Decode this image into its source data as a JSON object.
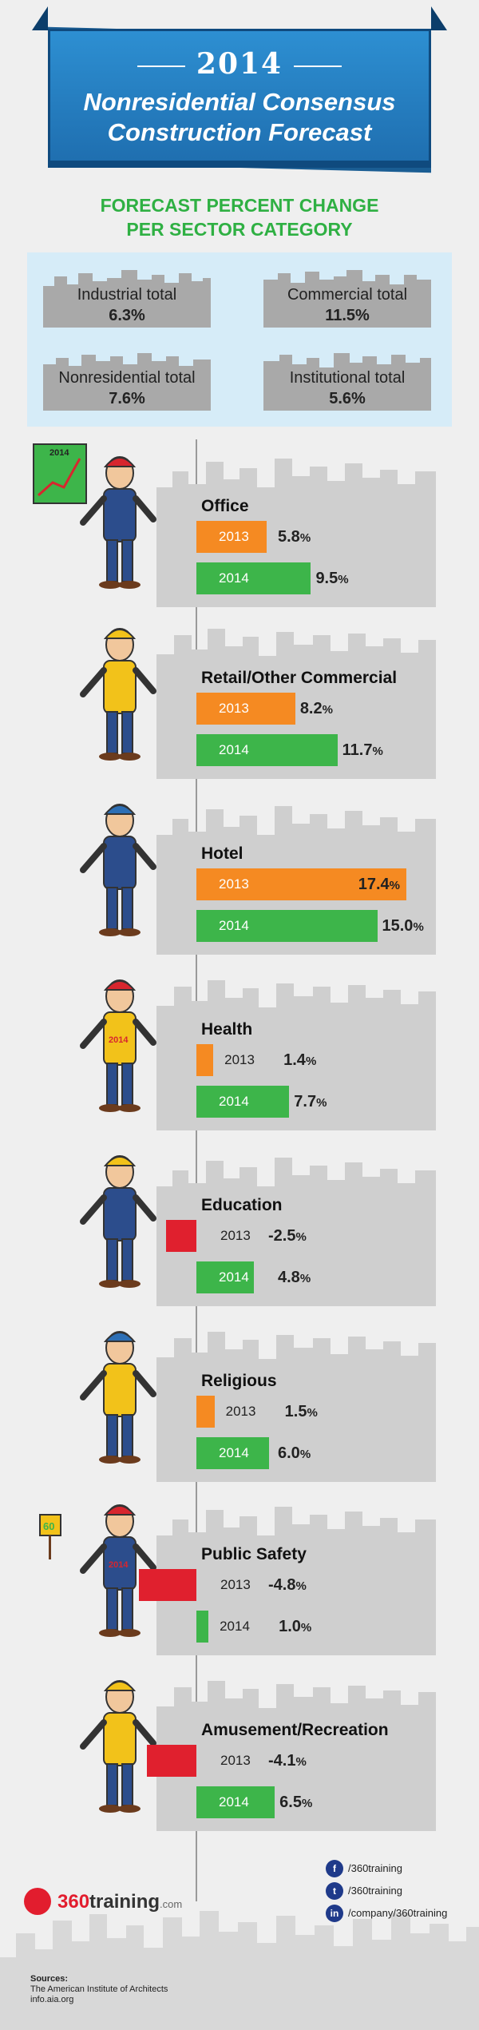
{
  "header": {
    "year": "2014",
    "title_line1": "Nonresidential Consensus",
    "title_line2": "Construction Forecast"
  },
  "section_title_line1": "FORECAST PERCENT CHANGE",
  "section_title_line2": "PER SECTOR CATEGORY",
  "summary": [
    {
      "label": "Industrial total",
      "value": "6.3%"
    },
    {
      "label": "Commercial total",
      "value": "11.5%"
    },
    {
      "label": "Nonresidential total",
      "value": "7.6%"
    },
    {
      "label": "Institutional total",
      "value": "5.6%"
    }
  ],
  "colors": {
    "y2013": "#f58a22",
    "y2014": "#3db54a",
    "negative": "#e0202e",
    "city": "#cfcfcf",
    "accent_blue": "#2d8fd2",
    "title_green": "#2fb043"
  },
  "chart_data": {
    "type": "bar",
    "orientation": "horizontal",
    "series": [
      {
        "name": "2013",
        "values": [
          5.8,
          8.2,
          17.4,
          1.4,
          -2.5,
          1.5,
          -4.8,
          -4.1
        ]
      },
      {
        "name": "2014",
        "values": [
          9.5,
          11.7,
          15.0,
          7.7,
          4.8,
          6.0,
          1.0,
          6.5
        ]
      }
    ],
    "categories": [
      "Office",
      "Retail/Other Commercial",
      "Hotel",
      "Health",
      "Education",
      "Religious",
      "Public Safety",
      "Amusement/Recreation"
    ],
    "value_labels_2013": [
      "5.8%",
      "8.2%",
      "17.4%",
      "1.4%",
      "-2.5%",
      "1.5%",
      "-4.8%",
      "-4.1%"
    ],
    "value_labels_2014": [
      "9.5%",
      "11.7%",
      "15.0%",
      "7.7%",
      "4.8%",
      "6.0%",
      "1.0%",
      "6.5%"
    ],
    "year_labels": [
      "2013",
      "2014"
    ]
  },
  "figure_badge": "2014",
  "sign_badge": "60",
  "footer": {
    "logo_prefix": "360",
    "logo_main": "training",
    "logo_suffix": ".com",
    "social": [
      {
        "icon": "facebook-icon",
        "glyph": "f",
        "text": "/360training"
      },
      {
        "icon": "twitter-icon",
        "glyph": "t",
        "text": "/360training"
      },
      {
        "icon": "linkedin-icon",
        "glyph": "in",
        "text": "/company/360training"
      }
    ],
    "sources_title": "Sources:",
    "sources_lines": [
      "The American Institute of Architects",
      "info.aia.org"
    ]
  }
}
